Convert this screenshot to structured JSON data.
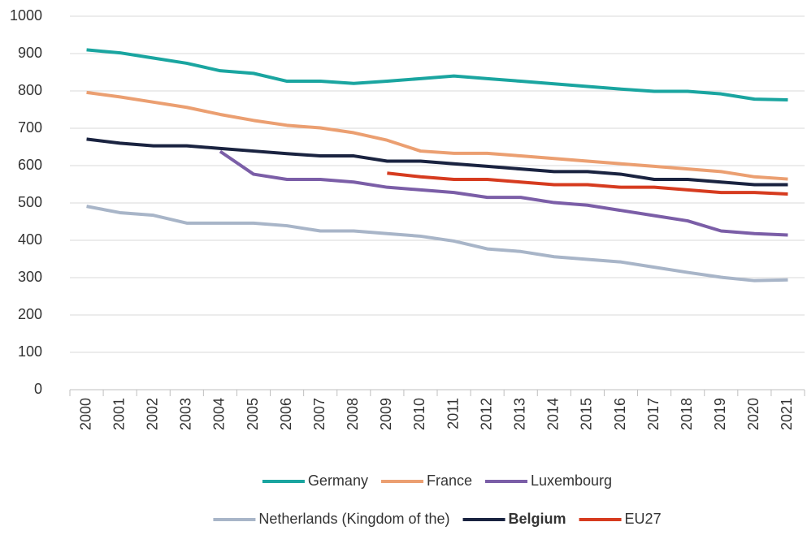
{
  "chart_data": {
    "type": "line",
    "categories": [
      "2000",
      "2001",
      "2002",
      "2003",
      "2004",
      "2005",
      "2006",
      "2007",
      "2008",
      "2009",
      "2010",
      "2011",
      "2012",
      "2013",
      "2014",
      "2015",
      "2016",
      "2017",
      "2018",
      "2019",
      "2020",
      "2021"
    ],
    "series": [
      {
        "name": "Germany",
        "color": "#1aa5a0",
        "values": [
          910,
          902,
          888,
          874,
          854,
          847,
          826,
          826,
          820,
          826,
          833,
          840,
          833,
          826,
          819,
          812,
          805,
          799,
          799,
          792,
          778,
          776
        ]
      },
      {
        "name": "France",
        "color": "#eb9f71",
        "values": [
          796,
          784,
          770,
          756,
          737,
          721,
          708,
          701,
          688,
          668,
          639,
          633,
          633,
          626,
          619,
          612,
          605,
          598,
          591,
          584,
          570,
          564
        ]
      },
      {
        "name": "Luxembourg",
        "color": "#7b5ea7",
        "values": [
          null,
          null,
          null,
          null,
          638,
          577,
          563,
          563,
          556,
          542,
          535,
          528,
          515,
          515,
          501,
          494,
          480,
          466,
          452,
          425,
          418,
          414
        ]
      },
      {
        "name": "Netherlands (Kingdom of the)",
        "color": "#a8b5c8",
        "values": [
          491,
          474,
          467,
          446,
          446,
          446,
          439,
          425,
          425,
          418,
          411,
          398,
          377,
          370,
          356,
          349,
          342,
          328,
          314,
          301,
          292,
          294
        ]
      },
      {
        "name": "Belgium",
        "color": "#1a2340",
        "bold": true,
        "values": [
          671,
          660,
          653,
          653,
          646,
          639,
          632,
          626,
          626,
          612,
          612,
          605,
          598,
          591,
          584,
          584,
          577,
          563,
          563,
          556,
          549,
          549
        ]
      },
      {
        "name": "EU27",
        "color": "#d63b1f",
        "values": [
          null,
          null,
          null,
          null,
          null,
          null,
          null,
          null,
          null,
          580,
          570,
          563,
          563,
          556,
          549,
          549,
          542,
          542,
          535,
          528,
          528,
          524
        ]
      }
    ],
    "ylim": [
      0,
      1000
    ],
    "yticks": [
      0,
      100,
      200,
      300,
      400,
      500,
      600,
      700,
      800,
      900,
      1000
    ],
    "grid": true,
    "legend": "bottom"
  }
}
